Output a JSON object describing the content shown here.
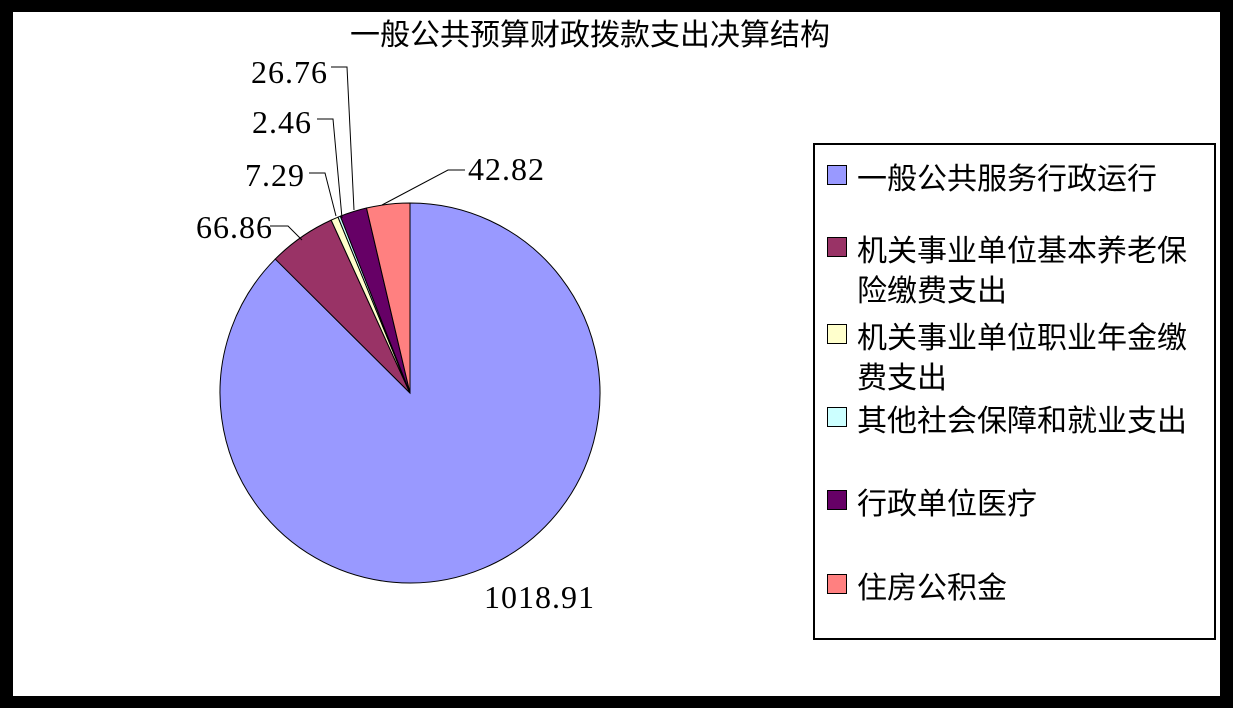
{
  "chart_title": "一般公共预算财政拨款支出决算结构",
  "chart_data": {
    "type": "pie",
    "title": "一般公共预算财政拨款支出决算结构",
    "total": 1165.1,
    "start_angle_deg": 0,
    "direction": "clockwise",
    "legend_position": "right",
    "label_style": "value-callouts",
    "slices": [
      {
        "name": "一般公共服务行政运行",
        "value": 1018.91,
        "label": "1018.91",
        "color": "#9999FF"
      },
      {
        "name": "机关事业单位基本养老保险缴费支出",
        "value": 66.86,
        "label": "66.86",
        "color": "#993366"
      },
      {
        "name": "机关事业单位职业年金缴费支出",
        "value": 7.29,
        "label": "7.29",
        "color": "#FFFFCC"
      },
      {
        "name": "其他社会保障和就业支出",
        "value": 2.46,
        "label": "2.46",
        "color": "#CCFFFF"
      },
      {
        "name": "行政单位医疗",
        "value": 26.76,
        "label": "26.76",
        "color": "#660066"
      },
      {
        "name": "住房公积金",
        "value": 42.82,
        "label": "42.82",
        "color": "#FF8080"
      }
    ],
    "frame_color": "#000000",
    "background_color": "#FFFFFF"
  }
}
